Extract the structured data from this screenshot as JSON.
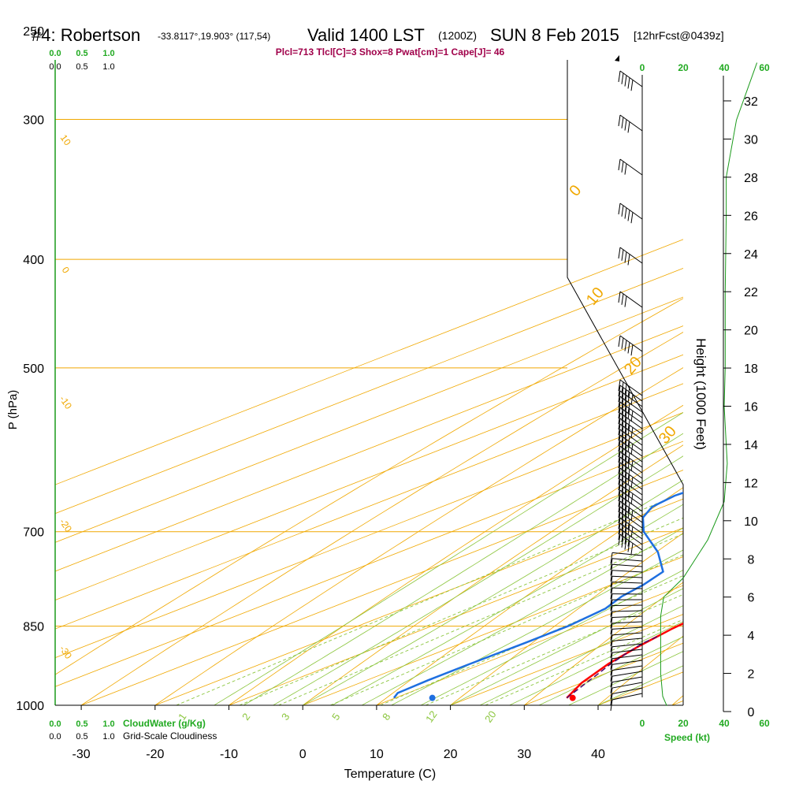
{
  "header": {
    "station": "#4: Robertson",
    "coords": "-33.8117°,19.903° (117,54)",
    "valid": "Valid 1400 LST",
    "zulu": "(1200Z)",
    "date": "SUN 8 Feb 2015",
    "forecast": "[12hrFcst@0439z]",
    "indices": "Plcl=713 Tlcl[C]=3 Shox=8 Pwat[cm]=1 Cape[J]= 46"
  },
  "colors": {
    "isotherm": "#f0a800",
    "dry_adiabat": "#f0a800",
    "moist_adiabat": "#8cc63f",
    "mixing_ratio": "#8cc63f",
    "temperature": "#ff0000",
    "dewpoint": "#1e6fe0",
    "parcel": "#4b0b6a",
    "cloud": "#22aa22",
    "indices_text": "#a0004a",
    "height_profile": "#1a9a1a"
  },
  "chart_data": {
    "type": "line",
    "title": "#4: Robertson",
    "xlabel": "Temperature (C)",
    "ylabel": "P (hPa)",
    "xlim": [
      -35,
      45
    ],
    "ylim": [
      1000,
      250
    ],
    "y_scale": "log",
    "x_ticks": [
      "-30",
      "-20",
      "-10",
      "0",
      "10",
      "20",
      "30",
      "40"
    ],
    "pressure_ticks": [
      1000,
      850,
      700,
      500,
      400,
      300,
      250
    ],
    "height_label": "Height (1000 Feet)",
    "height_ticks": [
      0,
      2,
      4,
      6,
      8,
      10,
      12,
      14,
      16,
      18,
      20,
      22,
      24,
      26,
      28,
      30,
      32
    ],
    "isotherm_labels": [
      "0",
      "10",
      "20",
      "30"
    ],
    "dry_adiabat_labels": [
      "10",
      "0",
      "-10",
      "-20",
      "-30"
    ],
    "mixing_ratio_labels": [
      "1",
      "2",
      "3",
      "5",
      "8",
      "12",
      "20"
    ],
    "cloud_scale_top": [
      "0.0",
      "0.5",
      "1.0"
    ],
    "cloud_scale_top2": [
      "0.0",
      "0.5",
      "1.0"
    ],
    "cloud_scale_bottom": [
      "0.0",
      "0.5",
      "1.0"
    ],
    "cloud_water_label": "CloudWater (g/Kg)",
    "cloud_scale_bottom2": [
      "0.0",
      "0.5",
      "1.0"
    ],
    "cloudiness_label": "Grid-Scale Cloudiness",
    "speed_ticks": [
      "0",
      "20",
      "40",
      "60"
    ],
    "speed_label": "Speed (kt)",
    "series": [
      {
        "name": "Temperature",
        "points": [
          [
            33.2,
            985
          ],
          [
            30,
            955
          ],
          [
            27,
            918
          ],
          [
            25,
            885
          ],
          [
            23.5,
            855
          ],
          [
            23,
            840
          ],
          [
            23,
            820
          ],
          [
            22.8,
            800
          ],
          [
            21.8,
            780
          ],
          [
            21.6,
            750
          ],
          [
            21.5,
            730
          ],
          [
            20.6,
            700
          ],
          [
            20,
            680
          ],
          [
            19.5,
            650
          ],
          [
            19,
            620
          ],
          [
            18,
            580
          ],
          [
            15,
            540
          ],
          [
            10.5,
            500
          ],
          [
            6,
            465
          ],
          [
            1,
            430
          ],
          [
            -4,
            400
          ],
          [
            -12,
            360
          ],
          [
            -20,
            330
          ],
          [
            -28,
            300
          ],
          [
            -35,
            280
          ],
          [
            -40,
            265
          ]
        ]
      },
      {
        "name": "Dewpoint",
        "points": [
          [
            9.8,
            985
          ],
          [
            8.6,
            975
          ],
          [
            8.3,
            950
          ],
          [
            8.3,
            920
          ],
          [
            8.5,
            880
          ],
          [
            8.5,
            850
          ],
          [
            7.5,
            820
          ],
          [
            5.5,
            800
          ],
          [
            4.3,
            780
          ],
          [
            2.5,
            760
          ],
          [
            -5,
            730
          ],
          [
            -14,
            700
          ],
          [
            -19,
            680
          ],
          [
            -21.5,
            665
          ],
          [
            -22.3,
            650
          ],
          [
            -21.5,
            630
          ],
          [
            -20,
            610
          ],
          [
            -19,
            580
          ],
          [
            -19.5,
            545
          ],
          [
            -21.8,
            500
          ],
          [
            -27,
            470
          ],
          [
            -32,
            440
          ],
          [
            -38,
            420
          ],
          [
            -44,
            400
          ],
          [
            -51,
            370
          ],
          [
            -56,
            350
          ],
          [
            -57,
            330
          ],
          [
            -55,
            320
          ],
          [
            -51,
            300
          ],
          [
            -51.5,
            285
          ],
          [
            -54,
            270
          ]
        ]
      },
      {
        "name": "Parcel",
        "points": [
          [
            33.2,
            985
          ],
          [
            31.5,
            965
          ],
          [
            29.5,
            942
          ],
          [
            27.5,
            920
          ],
          [
            25.8,
            898
          ],
          [
            24.5,
            880
          ],
          [
            24.2,
            868
          ]
        ]
      },
      {
        "name": "Surface points",
        "points": [
          [
            15,
            985
          ],
          [
            34,
            985
          ]
        ]
      }
    ],
    "height_profile": [
      [
        12,
        0.3
      ],
      [
        10,
        0.8
      ],
      [
        9,
        2
      ],
      [
        9,
        4
      ],
      [
        9,
        5
      ],
      [
        10.5,
        6
      ],
      [
        20,
        7
      ],
      [
        32,
        9
      ],
      [
        40,
        11
      ],
      [
        41.5,
        13
      ],
      [
        40,
        16
      ],
      [
        40.5,
        18
      ],
      [
        40.5,
        22
      ],
      [
        41,
        26
      ],
      [
        41,
        28
      ],
      [
        46,
        31
      ],
      [
        56,
        34
      ]
    ]
  }
}
